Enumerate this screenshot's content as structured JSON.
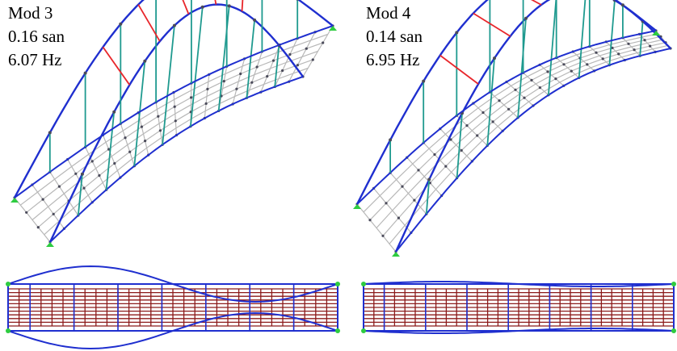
{
  "panels": [
    {
      "mode": "Mod 3",
      "period": "0.16 san",
      "frequency": "6.07 Hz"
    },
    {
      "mode": "Mod 4",
      "period": "0.14 san",
      "frequency": "6.95 Hz"
    }
  ],
  "colors": {
    "arch": "#1f2fcf",
    "hanger": "#1f9a8f",
    "hanger_highlight": "#e8262b",
    "deck_grid": "#b8b8b8",
    "node": "#4a4a5a",
    "plan_grid": "#8b1a1a",
    "support": "#2ecc40"
  }
}
